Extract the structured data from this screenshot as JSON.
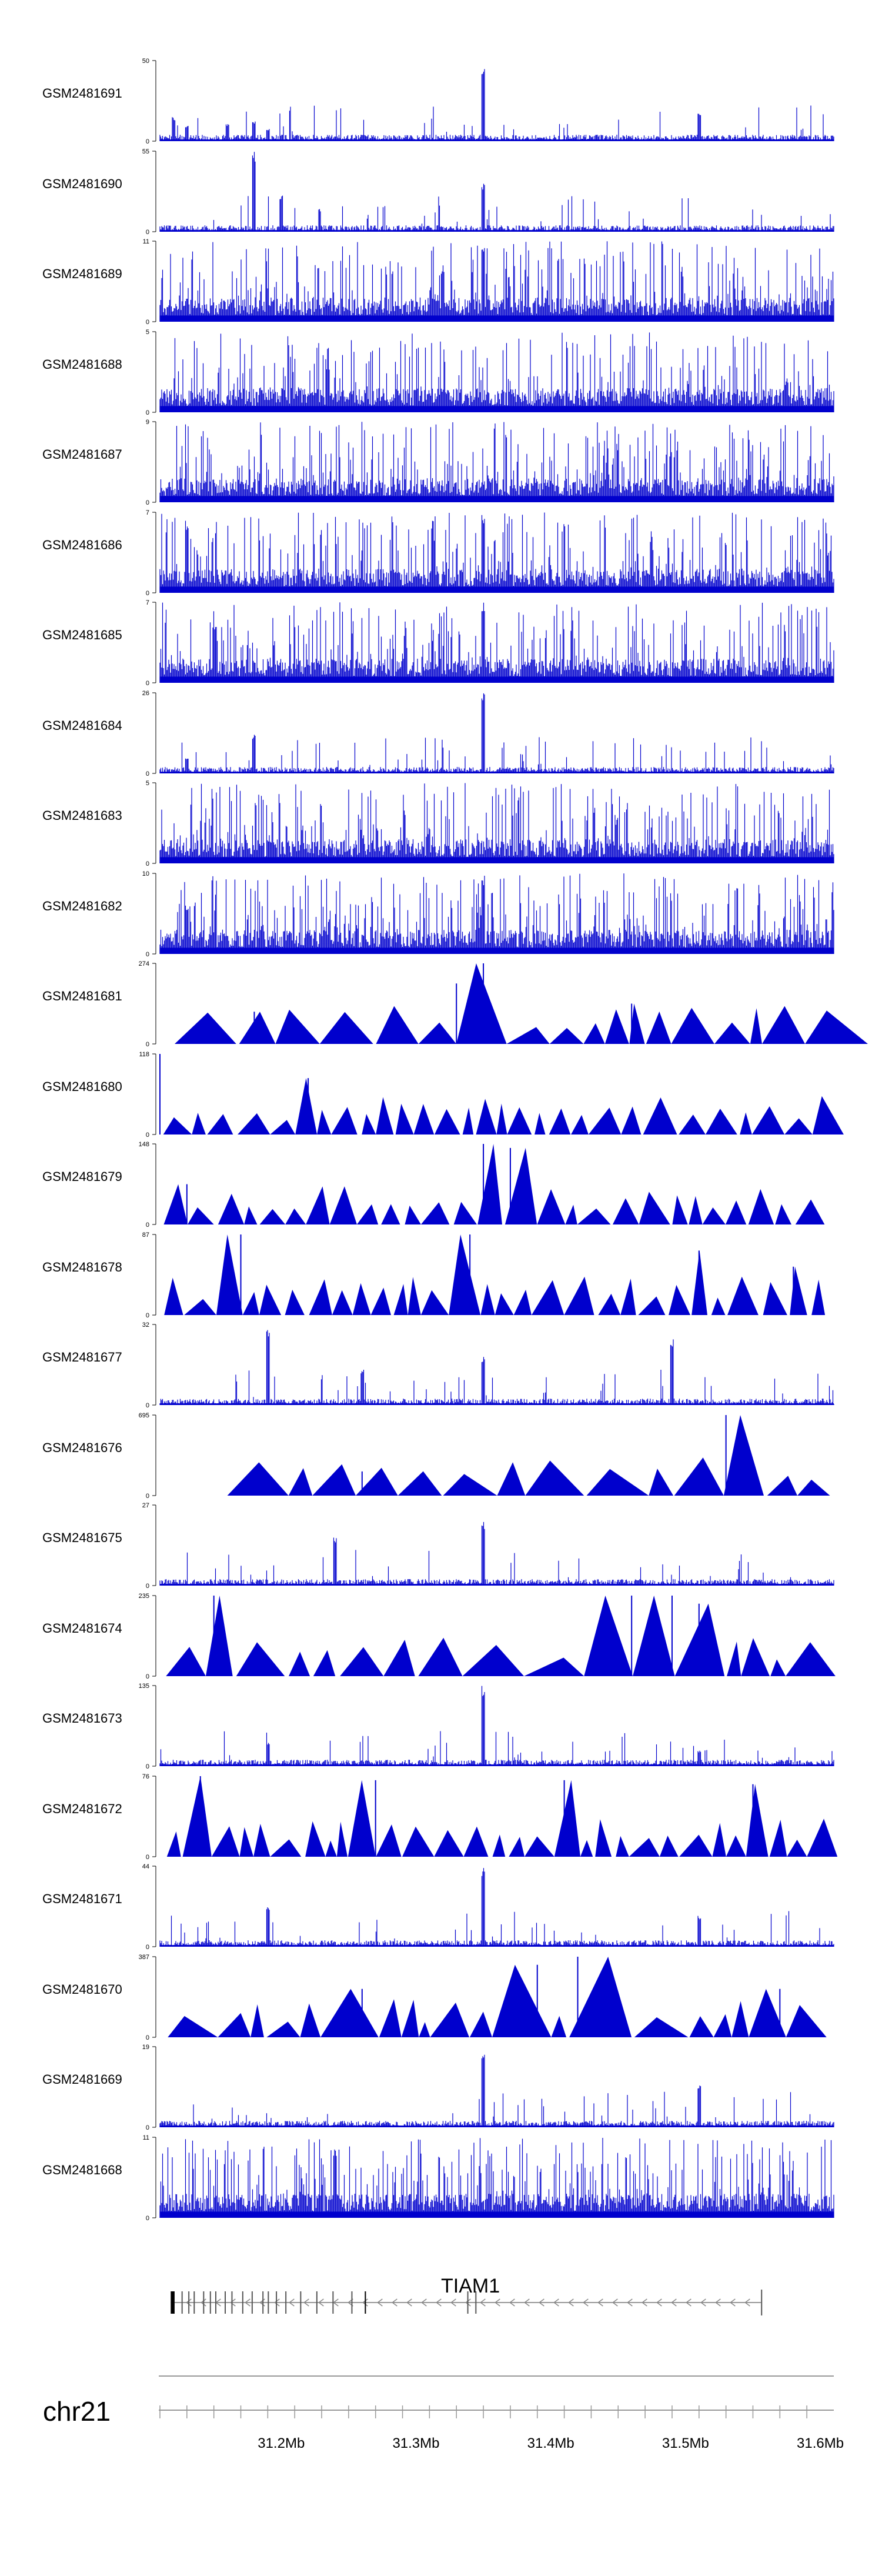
{
  "colors": {
    "signal": "#0000cd",
    "axis": "#000000",
    "gene": "#666666",
    "background": "#ffffff"
  },
  "chart_data": {
    "type": "area",
    "title": "",
    "xlabel": "chr21",
    "xlim": [
      31.11,
      31.61
    ],
    "x_ticks": [
      "31.2Mb",
      "31.3Mb",
      "31.4Mb",
      "31.5Mb",
      "31.6Mb"
    ],
    "tracks": [
      {
        "name": "GSM2481691",
        "ymax": 50,
        "style": "dense",
        "peaks": [
          [
            31.12,
            30
          ],
          [
            31.13,
            20
          ],
          [
            31.16,
            22
          ],
          [
            31.18,
            25
          ],
          [
            31.19,
            15
          ],
          [
            31.35,
            95
          ],
          [
            31.51,
            35
          ]
        ]
      },
      {
        "name": "GSM2481690",
        "ymax": 55,
        "style": "dense",
        "peaks": [
          [
            31.18,
            100
          ],
          [
            31.2,
            45
          ],
          [
            31.35,
            60
          ]
        ]
      },
      {
        "name": "GSM2481689",
        "ymax": 11,
        "style": "dense",
        "peaks": [
          [
            31.35,
            100
          ],
          [
            31.32,
            70
          ]
        ]
      },
      {
        "name": "GSM2481688",
        "ymax": 5,
        "style": "dense",
        "peaks": []
      },
      {
        "name": "GSM2481687",
        "ymax": 9,
        "style": "dense",
        "peaks": []
      },
      {
        "name": "GSM2481686",
        "ymax": 7,
        "style": "dense",
        "peaks": [
          [
            31.13,
            90
          ],
          [
            31.35,
            100
          ]
        ]
      },
      {
        "name": "GSM2481685",
        "ymax": 7,
        "style": "dense",
        "peaks": [
          [
            31.35,
            100
          ],
          [
            31.15,
            70
          ]
        ]
      },
      {
        "name": "GSM2481684",
        "ymax": 26,
        "style": "dense",
        "peaks": [
          [
            31.35,
            100
          ],
          [
            31.18,
            50
          ],
          [
            31.13,
            20
          ]
        ]
      },
      {
        "name": "GSM2481683",
        "ymax": 5,
        "style": "dense",
        "peaks": []
      },
      {
        "name": "GSM2481682",
        "ymax": 10,
        "style": "dense",
        "peaks": [
          [
            31.35,
            100
          ],
          [
            31.13,
            60
          ]
        ]
      },
      {
        "name": "GSM2481681",
        "ymax": 274,
        "style": "triangles",
        "peaks": [
          [
            31.33,
            75
          ],
          [
            31.35,
            100
          ],
          [
            31.18,
            40
          ],
          [
            31.46,
            50
          ]
        ]
      },
      {
        "name": "GSM2481680",
        "ymax": 118,
        "style": "triangles",
        "peaks": [
          [
            31.11,
            100
          ],
          [
            31.22,
            70
          ]
        ]
      },
      {
        "name": "GSM2481679",
        "ymax": 148,
        "style": "triangles",
        "peaks": [
          [
            31.35,
            100
          ],
          [
            31.37,
            95
          ],
          [
            31.13,
            50
          ]
        ]
      },
      {
        "name": "GSM2481678",
        "ymax": 87,
        "style": "triangles",
        "peaks": [
          [
            31.17,
            100
          ],
          [
            31.34,
            100
          ],
          [
            31.51,
            80
          ],
          [
            31.58,
            60
          ]
        ]
      },
      {
        "name": "GSM2481677",
        "ymax": 32,
        "style": "dense",
        "peaks": [
          [
            31.19,
            95
          ],
          [
            31.35,
            60
          ],
          [
            31.49,
            85
          ],
          [
            31.26,
            45
          ]
        ]
      },
      {
        "name": "GSM2481676",
        "ymax": 695,
        "style": "triangles",
        "peaks": [
          [
            31.53,
            100
          ],
          [
            31.26,
            30
          ]
        ]
      },
      {
        "name": "GSM2481675",
        "ymax": 27,
        "style": "dense",
        "peaks": [
          [
            31.35,
            80
          ],
          [
            31.24,
            60
          ]
        ]
      },
      {
        "name": "GSM2481674",
        "ymax": 235,
        "style": "triangles",
        "peaks": [
          [
            31.15,
            100
          ],
          [
            31.46,
            100
          ],
          [
            31.49,
            100
          ],
          [
            31.51,
            90
          ]
        ]
      },
      {
        "name": "GSM2481673",
        "ymax": 135,
        "style": "dense",
        "peaks": [
          [
            31.35,
            100
          ],
          [
            31.19,
            30
          ],
          [
            31.51,
            20
          ]
        ]
      },
      {
        "name": "GSM2481672",
        "ymax": 76,
        "style": "triangles",
        "peaks": [
          [
            31.14,
            100
          ],
          [
            31.27,
            95
          ],
          [
            31.41,
            95
          ],
          [
            31.55,
            90
          ]
        ]
      },
      {
        "name": "GSM2481671",
        "ymax": 44,
        "style": "dense",
        "peaks": [
          [
            31.35,
            100
          ],
          [
            31.19,
            50
          ],
          [
            31.51,
            40
          ]
        ]
      },
      {
        "name": "GSM2481670",
        "ymax": 387,
        "style": "triangles",
        "peaks": [
          [
            31.42,
            100
          ],
          [
            31.39,
            90
          ],
          [
            31.26,
            60
          ],
          [
            31.57,
            60
          ]
        ]
      },
      {
        "name": "GSM2481669",
        "ymax": 19,
        "style": "dense",
        "peaks": [
          [
            31.35,
            100
          ],
          [
            31.51,
            55
          ]
        ]
      },
      {
        "name": "GSM2481668",
        "ymax": 11,
        "style": "dense",
        "peaks": [
          [
            31.24,
            90
          ]
        ]
      }
    ],
    "gene": {
      "name": "TIAM1",
      "start": 31.118,
      "end": 31.556,
      "strand": "-"
    }
  }
}
